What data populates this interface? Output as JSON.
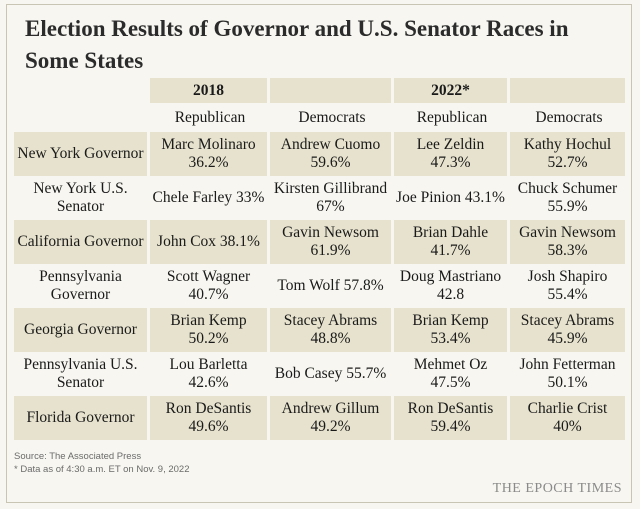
{
  "title": "Election Results of Governor and U.S. Senator Races in Some States",
  "colors": {
    "background": "#f7f6f0",
    "shade": "#e6e2cd",
    "text": "#1a1a1a"
  },
  "chart_data": {
    "type": "table",
    "years": [
      "2018",
      "2022*"
    ],
    "party_headers": [
      "Republican",
      "Democrats",
      "Republican",
      "Democrats"
    ],
    "rows": [
      {
        "race": "New York Governor",
        "r2018": "Marc Molinaro 36.2%",
        "d2018": "Andrew Cuomo 59.6%",
        "r2022": "Lee Zeldin 47.3%",
        "d2022": "Kathy Hochul 52.7%"
      },
      {
        "race": "New York U.S. Senator",
        "r2018": "Chele Farley 33%",
        "d2018": "Kirsten Gillibrand 67%",
        "r2022": "Joe Pinion 43.1%",
        "d2022": "Chuck Schumer 55.9%"
      },
      {
        "race": "California Governor",
        "r2018": "John Cox 38.1%",
        "d2018": "Gavin Newsom 61.9%",
        "r2022": "Brian Dahle 41.7%",
        "d2022": "Gavin Newsom 58.3%"
      },
      {
        "race": "Pennsylvania Governor",
        "r2018": "Scott Wagner 40.7%",
        "d2018": "Tom Wolf 57.8%",
        "r2022": "Doug Mastriano 42.8",
        "d2022": "Josh Shapiro 55.4%"
      },
      {
        "race": "Georgia Governor",
        "r2018": "Brian Kemp 50.2%",
        "d2018": "Stacey Abrams 48.8%",
        "r2022": "Brian Kemp 53.4%",
        "d2022": "Stacey Abrams 45.9%"
      },
      {
        "race": "Pennsylvania U.S. Senator",
        "r2018": "Lou Barletta 42.6%",
        "d2018": "Bob Casey 55.7%",
        "r2022": "Mehmet Oz 47.5%",
        "d2022": "John Fetterman 50.1%"
      },
      {
        "race": "Florida Governor",
        "r2018": "Ron DeSantis 49.6%",
        "d2018": "Andrew Gillum 49.2%",
        "r2022": "Ron DeSantis 59.4%",
        "d2022": "Charlie Crist 40%"
      }
    ]
  },
  "source": "Source: The Associated Press",
  "note": "* Data as of 4:30 a.m. ET on Nov. 9, 2022",
  "brand": "THE EPOCH TIMES"
}
